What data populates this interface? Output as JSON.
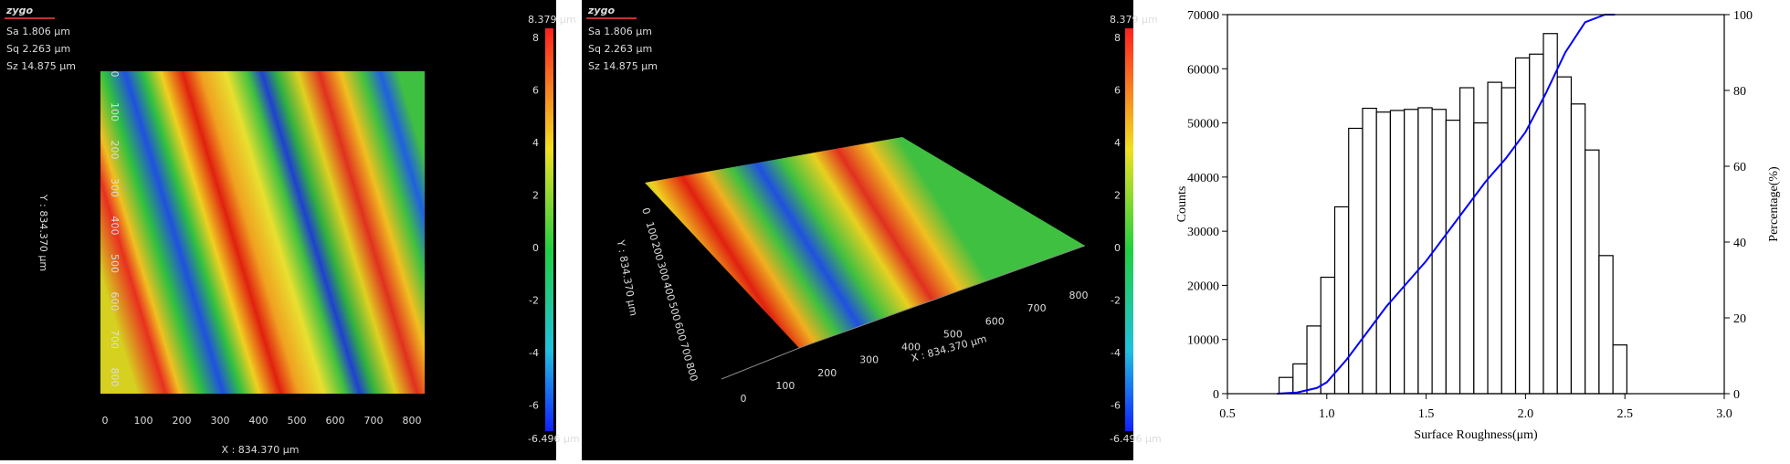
{
  "panels": [
    {
      "logo": "zygo",
      "params": [
        "Sa 1.806  μm",
        "Sq 2.263  μm",
        "Sz 14.875  μm"
      ],
      "x_ticks": [
        0,
        100,
        200,
        300,
        400,
        500,
        600,
        700,
        800
      ],
      "y_ticks": [
        0,
        100,
        200,
        300,
        400,
        500,
        600,
        700,
        800
      ],
      "x_label": "X : 834.370 μm",
      "y_label": "Y : 834.370 μm",
      "colorbar_max": "8.379 μm",
      "colorbar_min": "-6.496 μm",
      "colorbar_ticks": [
        8,
        6,
        4,
        2,
        0,
        -2,
        -4,
        -6
      ]
    },
    {
      "logo": "zygo",
      "params": [
        "Sa 1.806  μm",
        "Sq 2.263  μm",
        "Sz 14.875  μm"
      ],
      "x_ticks": [
        0,
        100,
        200,
        300,
        400,
        500,
        600,
        700,
        800
      ],
      "y_ticks": [
        0,
        100,
        200,
        300,
        400,
        500,
        600,
        700,
        800
      ],
      "x_label": "X : 834.370 μm",
      "y_label": "Y : 834.370 μm",
      "colorbar_max": "8.379 μm",
      "colorbar_min": "-6.496 μm",
      "colorbar_ticks": [
        8,
        6,
        4,
        2,
        0,
        -2,
        -4,
        -6
      ]
    }
  ],
  "chart_data": {
    "type": "histogram",
    "xlabel": "Surface Roughness(μm)",
    "ylabel": "Counts",
    "y2label": "Percentage(%)",
    "bins": [
      0.76,
      0.83,
      0.9,
      0.97,
      1.04,
      1.11,
      1.18,
      1.25,
      1.32,
      1.39,
      1.46,
      1.53,
      1.6,
      1.67,
      1.74,
      1.81,
      1.88,
      1.95,
      2.02,
      2.09,
      2.16,
      2.23,
      2.3,
      2.37,
      2.44,
      2.51,
      2.58
    ],
    "values": [
      3000,
      5500,
      12500,
      21500,
      34500,
      49000,
      52700,
      52000,
      52300,
      52500,
      52800,
      52500,
      50500,
      56500,
      50000,
      57500,
      56500,
      62000,
      62700,
      66500,
      58500,
      53500,
      45000,
      25500,
      9000,
      0
    ],
    "color": "#000000",
    "line": {
      "x": [
        0.75,
        0.85,
        0.95,
        1.0,
        1.1,
        1.2,
        1.3,
        1.4,
        1.5,
        1.6,
        1.7,
        1.8,
        1.9,
        2.0,
        2.1,
        2.2,
        2.3,
        2.4,
        2.45
      ],
      "values": [
        0,
        0.3,
        1.5,
        3,
        9,
        16,
        23,
        29,
        35,
        42,
        49,
        56,
        62,
        69,
        79,
        90,
        98,
        100,
        100
      ],
      "color": "#0000ff",
      "axis": "y2"
    },
    "xlim": [
      0.5,
      3.0
    ],
    "xticks": [
      0.5,
      {
        "value": 1,
        "label": "1.0"
      },
      1.5,
      {
        "value": 2,
        "label": "2.0"
      },
      2.5,
      {
        "value": 3,
        "label": "3.0"
      }
    ],
    "ylim": [
      0,
      70000
    ],
    "yticks": [
      0,
      10000,
      20000,
      30000,
      40000,
      50000,
      60000,
      70000
    ],
    "y2lim": [
      0,
      100
    ],
    "y2ticks": [
      0,
      20,
      40,
      60,
      80,
      100
    ]
  }
}
